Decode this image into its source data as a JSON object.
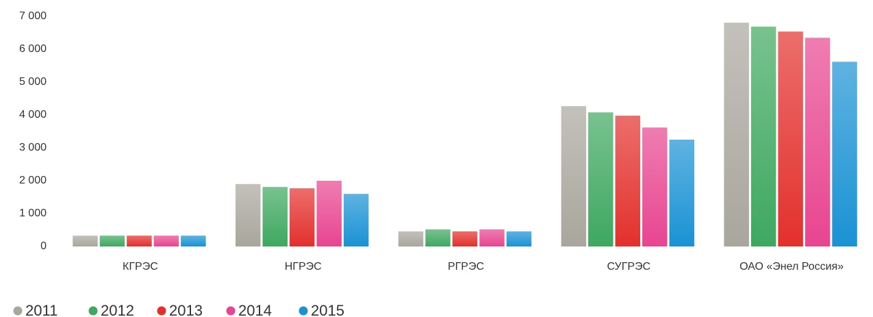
{
  "chart_data": {
    "type": "bar",
    "categories": [
      "КГРЭС",
      "НГРЭС",
      "РГРЭС",
      "СУГРЭС",
      "ОАО «Энел Россия»"
    ],
    "series": [
      {
        "name": "2011",
        "color": "#a9a69d",
        "values": [
          330,
          1900,
          460,
          4270,
          6810
        ]
      },
      {
        "name": "2012",
        "color": "#3ea860",
        "values": [
          330,
          1810,
          520,
          4080,
          6690
        ]
      },
      {
        "name": "2013",
        "color": "#e3302c",
        "values": [
          330,
          1770,
          460,
          3980,
          6540
        ]
      },
      {
        "name": "2014",
        "color": "#e84590",
        "values": [
          330,
          2000,
          520,
          3620,
          6350
        ]
      },
      {
        "name": "2015",
        "color": "#1a92d4",
        "values": [
          330,
          1600,
          460,
          3250,
          5620
        ]
      }
    ],
    "ylim": [
      0,
      7000
    ],
    "yticks": [
      0,
      {
        "value": 1000,
        "label": "1 000"
      },
      {
        "value": 2000,
        "label": "2 000"
      },
      {
        "value": 3000,
        "label": "3 000"
      },
      {
        "value": 4000,
        "label": "4 000"
      },
      {
        "value": 5000,
        "label": "5 000"
      },
      {
        "value": 6000,
        "label": "6 000"
      },
      {
        "value": 7000,
        "label": "7 000"
      }
    ],
    "grid": false
  }
}
